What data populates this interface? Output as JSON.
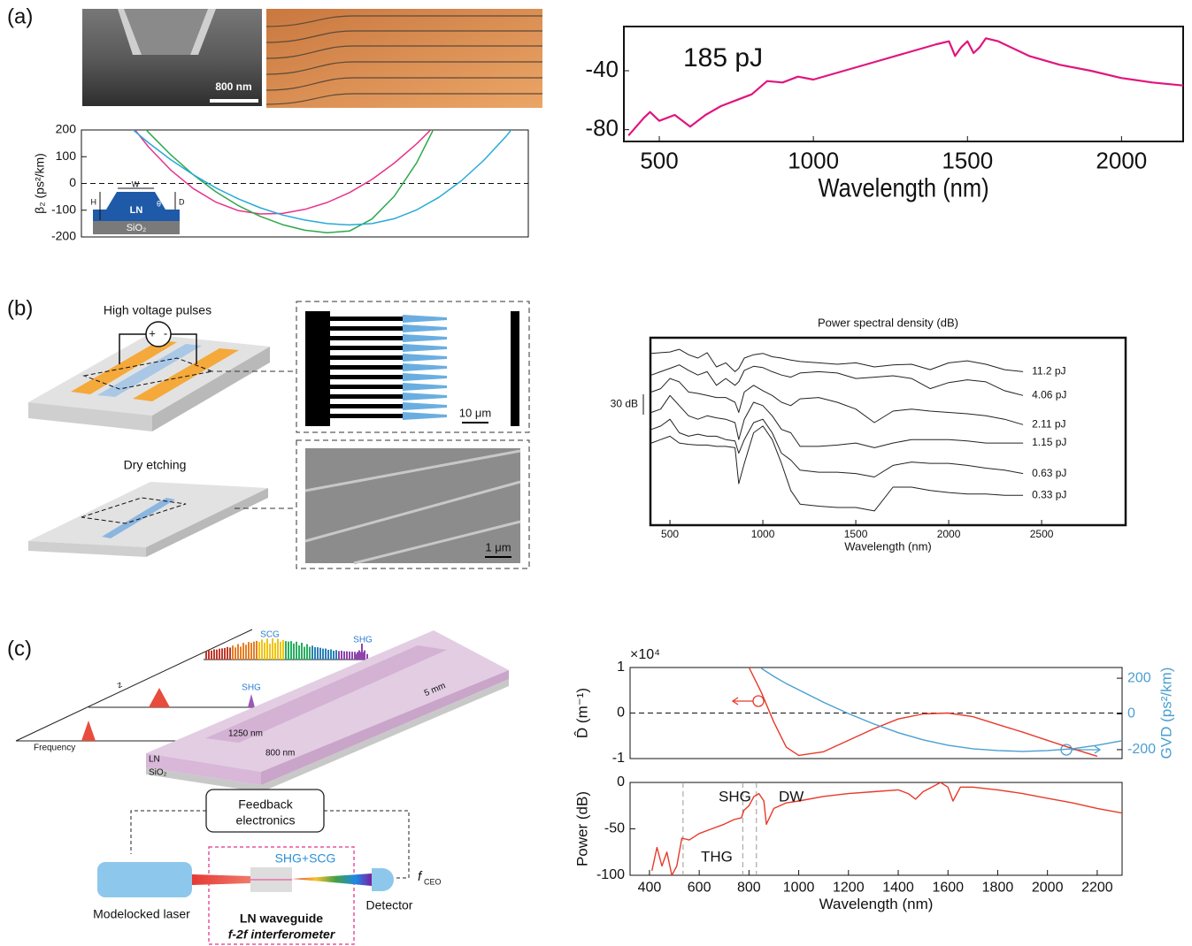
{
  "panel_labels": [
    "(a)",
    "(b)",
    "(c)"
  ],
  "panel_a": {
    "scale_bar": "800 nm",
    "inset": {
      "width": "W",
      "height": "H",
      "depth": "D",
      "angle": "θ",
      "core": "LN",
      "substrate": "SiO₂"
    }
  },
  "panel_b": {
    "pulses": "High voltage pulses",
    "plus": "+",
    "minus": "-",
    "etching": "Dry etching",
    "scale_top": "10 μm",
    "scale_bottom": "1 μm"
  },
  "panel_c": {
    "scg": "SCG",
    "shg_far": "SHG",
    "shg_mid": "SHG",
    "axis_z": "z",
    "axis_frequency": "Frequency",
    "width": "1250 nm",
    "height": "800 nm",
    "length": "5 mm",
    "core": "LN",
    "substrate": "SiO₂",
    "feedback": [
      "Feedback",
      "electronics"
    ],
    "shg_scg": "SHG+SCG",
    "fceo": "f",
    "fceo_sub": "CEO",
    "laser": "Modelocked laser",
    "detector": "Detector",
    "waveguide": [
      "LN waveguide",
      "f-2f interferometer"
    ]
  },
  "chart_data": [
    {
      "type": "line",
      "xlabel": "Wavelength (nm)",
      "annotations": [
        "185 pJ"
      ],
      "xlim": [
        385,
        2200
      ],
      "ylim": [
        -88,
        -10
      ],
      "xticks": [
        500,
        1000,
        1500,
        2000
      ],
      "yticks": [
        -40,
        -80
      ],
      "x": [
        400,
        450,
        470,
        500,
        550,
        600,
        650,
        700,
        750,
        800,
        850,
        900,
        950,
        1000,
        1100,
        1200,
        1300,
        1400,
        1440,
        1460,
        1480,
        1500,
        1520,
        1540,
        1560,
        1600,
        1700,
        1800,
        1900,
        2000,
        2100,
        2200
      ],
      "series": [
        {
          "color": "#e0157f",
          "values": [
            -84,
            -72,
            -68,
            -74,
            -70,
            -78,
            -70,
            -64,
            -60,
            -56,
            -47,
            -48,
            -44,
            -46,
            -40,
            -34,
            -28,
            -22,
            -20,
            -30,
            -24,
            -20,
            -28,
            -24,
            -18,
            -20,
            -30,
            -36,
            -40,
            -45,
            -48,
            -50
          ]
        }
      ]
    },
    {
      "type": "line",
      "ylabel": "β₂ (ps²/km)",
      "xlim": [
        0,
        10
      ],
      "ylim": [
        -200,
        200
      ],
      "yticks": [
        -200,
        -100,
        0,
        100,
        200
      ],
      "hline": 0,
      "x": [
        1,
        1.5,
        2,
        2.5,
        3,
        3.5,
        4,
        4.5,
        5,
        5.5,
        6,
        6.5,
        7,
        7.5,
        8,
        8.5,
        9,
        9.5,
        10
      ],
      "series": [
        {
          "color": "#e8338a",
          "values": [
            242,
            137,
            50,
            -19,
            -69,
            -101,
            -114,
            -112,
            -97,
            -71,
            -34,
            15,
            76,
            148,
            231,
            null,
            null,
            null,
            null
          ]
        },
        {
          "color": "#2ea84a",
          "values": [
            285,
            191,
            107,
            33,
            -30,
            -82,
            -123,
            -154,
            -175,
            -184,
            -178,
            -133,
            -48,
            77,
            243,
            null,
            null,
            null,
            null
          ]
        },
        {
          "color": "#2aa9d8",
          "values": [
            222,
            152,
            89,
            33,
            -16,
            -57,
            -91,
            -118,
            -137,
            -150,
            -155,
            -150,
            -132,
            -99,
            -52,
            10,
            86,
            176,
            280
          ]
        }
      ]
    },
    {
      "type": "line",
      "title": "Power spectral density (dB)",
      "xlabel": "Wavelength (nm)",
      "xlim": [
        395,
        2952
      ],
      "ylim": [
        -276,
        0
      ],
      "xticks": [
        500,
        1000,
        1500,
        2000,
        2500
      ],
      "scale_bar": {
        "value": 30,
        "label": "30 dB"
      },
      "x": [
        400,
        450,
        500,
        550,
        600,
        650,
        700,
        750,
        800,
        850,
        870,
        900,
        950,
        1000,
        1050,
        1100,
        1150,
        1200,
        1300,
        1400,
        1500,
        1600,
        1700,
        1800,
        1900,
        2000,
        2100,
        2200,
        2300,
        2400
      ],
      "series": [
        {
          "name": "11.2 pJ",
          "color": "#222222",
          "values": [
            -23,
            -22,
            -21,
            -17,
            -25,
            -30,
            -22,
            -43,
            -37,
            -50,
            -45,
            -30,
            -25,
            -23,
            -28,
            -30,
            -33,
            -35,
            -37,
            -39,
            -37,
            -43,
            -40,
            -39,
            -47,
            -37,
            -34,
            -39,
            -47,
            -50
          ]
        },
        {
          "name": "4.06 pJ",
          "color": "#222222",
          "values": [
            -55,
            -50,
            -45,
            -40,
            -48,
            -55,
            -50,
            -70,
            -60,
            -70,
            -65,
            -48,
            -42,
            -44,
            -50,
            -55,
            -58,
            -52,
            -50,
            -52,
            -60,
            -58,
            -56,
            -60,
            -75,
            -66,
            -62,
            -65,
            -78,
            -85
          ]
        },
        {
          "name": "2.11 pJ",
          "color": "#222222",
          "values": [
            -80,
            -75,
            -60,
            -65,
            -80,
            -82,
            -85,
            -88,
            -88,
            -95,
            -110,
            -80,
            -70,
            -78,
            -85,
            -95,
            -100,
            -90,
            -88,
            -95,
            -105,
            -125,
            -108,
            -105,
            -108,
            -110,
            -112,
            -115,
            -120,
            -128
          ]
        },
        {
          "name": "1.15 pJ",
          "color": "#222222",
          "values": [
            -110,
            -105,
            -85,
            -100,
            -115,
            -120,
            -115,
            -118,
            -120,
            -125,
            -150,
            -120,
            -95,
            -100,
            -115,
            -135,
            -140,
            -160,
            -160,
            -158,
            -155,
            -162,
            -155,
            -150,
            -150,
            -150,
            -152,
            -155,
            -155,
            -155
          ]
        },
        {
          "name": "0.63 pJ",
          "color": "#222222",
          "values": [
            -135,
            -130,
            -120,
            -140,
            -145,
            -142,
            -145,
            -145,
            -150,
            -152,
            -170,
            -150,
            -125,
            -120,
            -140,
            -170,
            -180,
            -195,
            -198,
            -198,
            -200,
            -205,
            -188,
            -183,
            -185,
            -185,
            -188,
            -192,
            -195,
            -200
          ]
        },
        {
          "name": "0.33 pJ",
          "color": "#222222",
          "values": [
            -155,
            -150,
            -145,
            -155,
            -157,
            -158,
            -158,
            -160,
            -160,
            -162,
            -215,
            -185,
            -140,
            -130,
            -150,
            -185,
            -225,
            -245,
            -248,
            -250,
            -250,
            -255,
            -220,
            -220,
            -225,
            -228,
            -230,
            -230,
            -232,
            -232
          ]
        }
      ]
    },
    {
      "type": "line",
      "ylabel": "D̂ (m⁻¹)",
      "multiplier": "×10⁴",
      "y2label": "GVD (ps²/km)",
      "xlim": [
        322,
        2300
      ],
      "ylim": [
        -1,
        1
      ],
      "yticks": [
        -1,
        0,
        1
      ],
      "y2lim": [
        -250,
        260
      ],
      "y2ticks": [
        -200,
        0,
        200
      ],
      "hline": 0,
      "x": [
        800,
        850,
        900,
        950,
        1000,
        1100,
        1200,
        1300,
        1400,
        1500,
        1600,
        1700,
        1800,
        1900,
        2000,
        2100,
        2200,
        2300
      ],
      "series": [
        {
          "color": "#e8392b",
          "values": [
            1,
            0.45,
            -0.2,
            -0.75,
            -0.93,
            -0.85,
            -0.6,
            -0.35,
            -0.13,
            -0.02,
            0,
            -0.08,
            -0.25,
            -0.42,
            -0.6,
            -0.78,
            -0.95,
            null
          ]
        },
        {
          "color": "#4a9fd1",
          "axis": "y2",
          "values": [
            null,
            255,
            210,
            170,
            135,
            65,
            2,
            -55,
            -105,
            -145,
            -175,
            -195,
            -205,
            -210,
            -205,
            -195,
            -175,
            -150
          ]
        }
      ]
    },
    {
      "type": "line",
      "xlabel": "Wavelength (nm)",
      "ylabel": "Power (dB)",
      "annotations": [
        "SHG",
        "DW",
        "THG"
      ],
      "xlim": [
        322,
        2300
      ],
      "ylim": [
        -100,
        0
      ],
      "yticks": [
        -100,
        -50,
        0
      ],
      "xticks": [
        400,
        600,
        800,
        1000,
        1200,
        1400,
        1600,
        1800,
        2000,
        2200
      ],
      "vlines": [
        535,
        775,
        830
      ],
      "x": [
        410,
        430,
        450,
        470,
        490,
        510,
        530,
        560,
        600,
        650,
        700,
        740,
        770,
        780,
        800,
        820,
        840,
        860,
        870,
        900,
        950,
        1000,
        1100,
        1200,
        1300,
        1400,
        1440,
        1470,
        1500,
        1550,
        1570,
        1600,
        1620,
        1650,
        1700,
        1800,
        1900,
        2000,
        2100,
        2200,
        2300
      ],
      "series": [
        {
          "color": "#e8392b",
          "values": [
            -95,
            -70,
            -90,
            -75,
            -100,
            -90,
            -60,
            -62,
            -55,
            -50,
            -45,
            -40,
            -38,
            -30,
            -25,
            -15,
            -12,
            -20,
            -45,
            -28,
            -22,
            -20,
            -15,
            -12,
            -10,
            -8,
            -12,
            -18,
            -10,
            -3,
            0,
            -5,
            -20,
            -5,
            -5,
            -8,
            -12,
            -17,
            -22,
            -28,
            -33
          ]
        }
      ]
    }
  ]
}
